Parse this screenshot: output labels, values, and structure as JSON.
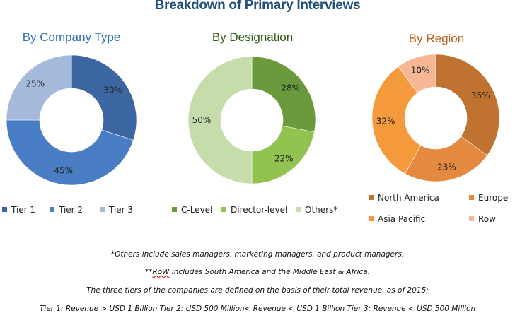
{
  "title": "Breakdown of Primary Interviews",
  "chart_data": [
    {
      "type": "pie",
      "title": "By Company Type",
      "title_color": "#2e6fb6",
      "slices": [
        {
          "name": "Tier 1",
          "value": 30,
          "label": "30%",
          "color": "#3c66a2"
        },
        {
          "name": "Tier 2",
          "value": 45,
          "label": "45%",
          "color": "#4a7ec4"
        },
        {
          "name": "Tier 3",
          "value": 25,
          "label": "25%",
          "color": "#a5b9db"
        }
      ]
    },
    {
      "type": "pie",
      "title": "By Designation",
      "title_color": "#2f5a17",
      "slices": [
        {
          "name": "C-Level",
          "value": 28,
          "label": "28%",
          "color": "#6a9a3c"
        },
        {
          "name": "Director-level",
          "value": 22,
          "label": "22%",
          "color": "#92c250"
        },
        {
          "name": "Others*",
          "value": 50,
          "label": "50%",
          "color": "#c6dcaa"
        }
      ]
    },
    {
      "type": "pie",
      "title": "By Region",
      "title_color": "#b85a10",
      "slices": [
        {
          "name": "North America",
          "value": 35,
          "label": "35%",
          "color": "#c07230"
        },
        {
          "name": "Europe",
          "value": 23,
          "label": "23%",
          "color": "#e48a40"
        },
        {
          "name": "Asia Pacific",
          "value": 32,
          "label": "32%",
          "color": "#f59a3c"
        },
        {
          "name": "Row",
          "value": 10,
          "label": "10%",
          "color": "#f7b795"
        }
      ]
    }
  ],
  "notes": {
    "others": "*Others include sales managers, marketing managers, and product managers.",
    "row_prefix": "**",
    "row_word": "RoW",
    "row_rest": " includes South America and the Middle East & Africa.",
    "tiers_basis": "The three tiers of the companies are defined on the basis of their total revenue, as of 2015;",
    "tiers_def": "Tier 1: Revenue > USD 1 Billion Tier 2: USD 500 Million< Revenue < USD 1 Billion Tier 3: Revenue < USD 500 Million"
  }
}
